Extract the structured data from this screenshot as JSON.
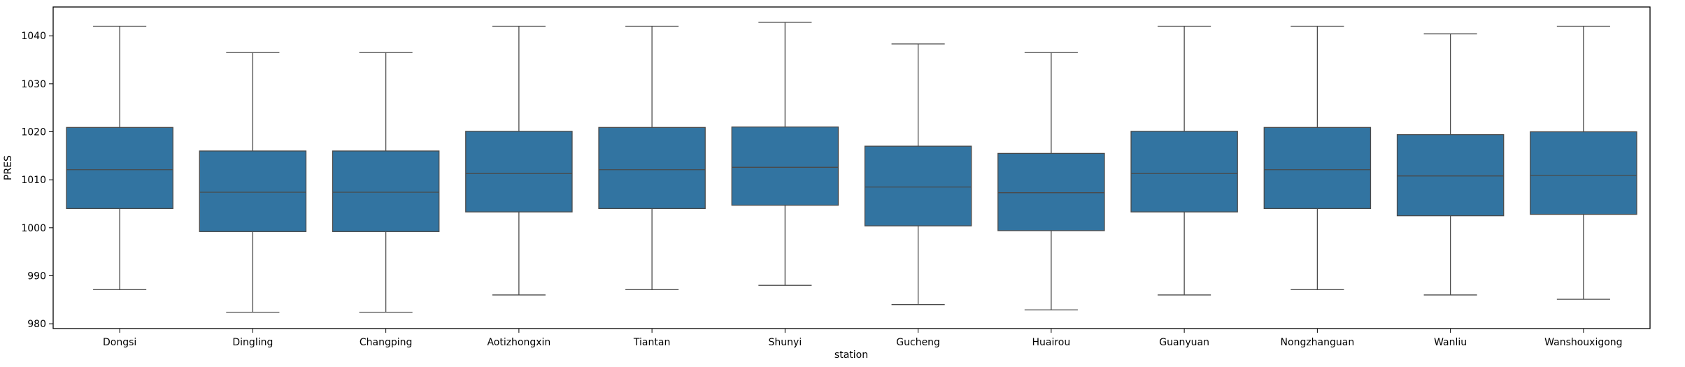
{
  "chart_data": {
    "type": "boxplot",
    "title": "",
    "xlabel": "station",
    "ylabel": "PRES",
    "ylim": [
      979,
      1046
    ],
    "yticks": [
      980,
      990,
      1000,
      1010,
      1020,
      1030,
      1040
    ],
    "box_color": "#3274a1",
    "line_color": "#4a4a4a",
    "categories": [
      "Dongsi",
      "Dingling",
      "Changping",
      "Aotizhongxin",
      "Tiantan",
      "Shunyi",
      "Gucheng",
      "Huairou",
      "Guanyuan",
      "Nongzhanguan",
      "Wanliu",
      "Wanshouxigong"
    ],
    "stats": [
      {
        "whislo": 987.1,
        "q1": 1004.0,
        "med": 1012.1,
        "q3": 1020.9,
        "whishi": 1042.0
      },
      {
        "whislo": 982.4,
        "q1": 999.2,
        "med": 1007.4,
        "q3": 1016.0,
        "whishi": 1036.5
      },
      {
        "whislo": 982.4,
        "q1": 999.2,
        "med": 1007.4,
        "q3": 1016.0,
        "whishi": 1036.5
      },
      {
        "whislo": 986.0,
        "q1": 1003.3,
        "med": 1011.3,
        "q3": 1020.1,
        "whishi": 1042.0
      },
      {
        "whislo": 987.1,
        "q1": 1004.0,
        "med": 1012.1,
        "q3": 1020.9,
        "whishi": 1042.0
      },
      {
        "whislo": 988.0,
        "q1": 1004.7,
        "med": 1012.6,
        "q3": 1021.0,
        "whishi": 1042.8
      },
      {
        "whislo": 984.0,
        "q1": 1000.4,
        "med": 1008.5,
        "q3": 1017.0,
        "whishi": 1038.3
      },
      {
        "whislo": 982.9,
        "q1": 999.4,
        "med": 1007.3,
        "q3": 1015.5,
        "whishi": 1036.5
      },
      {
        "whislo": 986.0,
        "q1": 1003.3,
        "med": 1011.3,
        "q3": 1020.1,
        "whishi": 1042.0
      },
      {
        "whislo": 987.1,
        "q1": 1004.0,
        "med": 1012.1,
        "q3": 1020.9,
        "whishi": 1042.0
      },
      {
        "whislo": 986.0,
        "q1": 1002.5,
        "med": 1010.8,
        "q3": 1019.4,
        "whishi": 1040.4
      },
      {
        "whislo": 985.1,
        "q1": 1002.8,
        "med": 1010.9,
        "q3": 1020.0,
        "whishi": 1042.0
      }
    ]
  }
}
